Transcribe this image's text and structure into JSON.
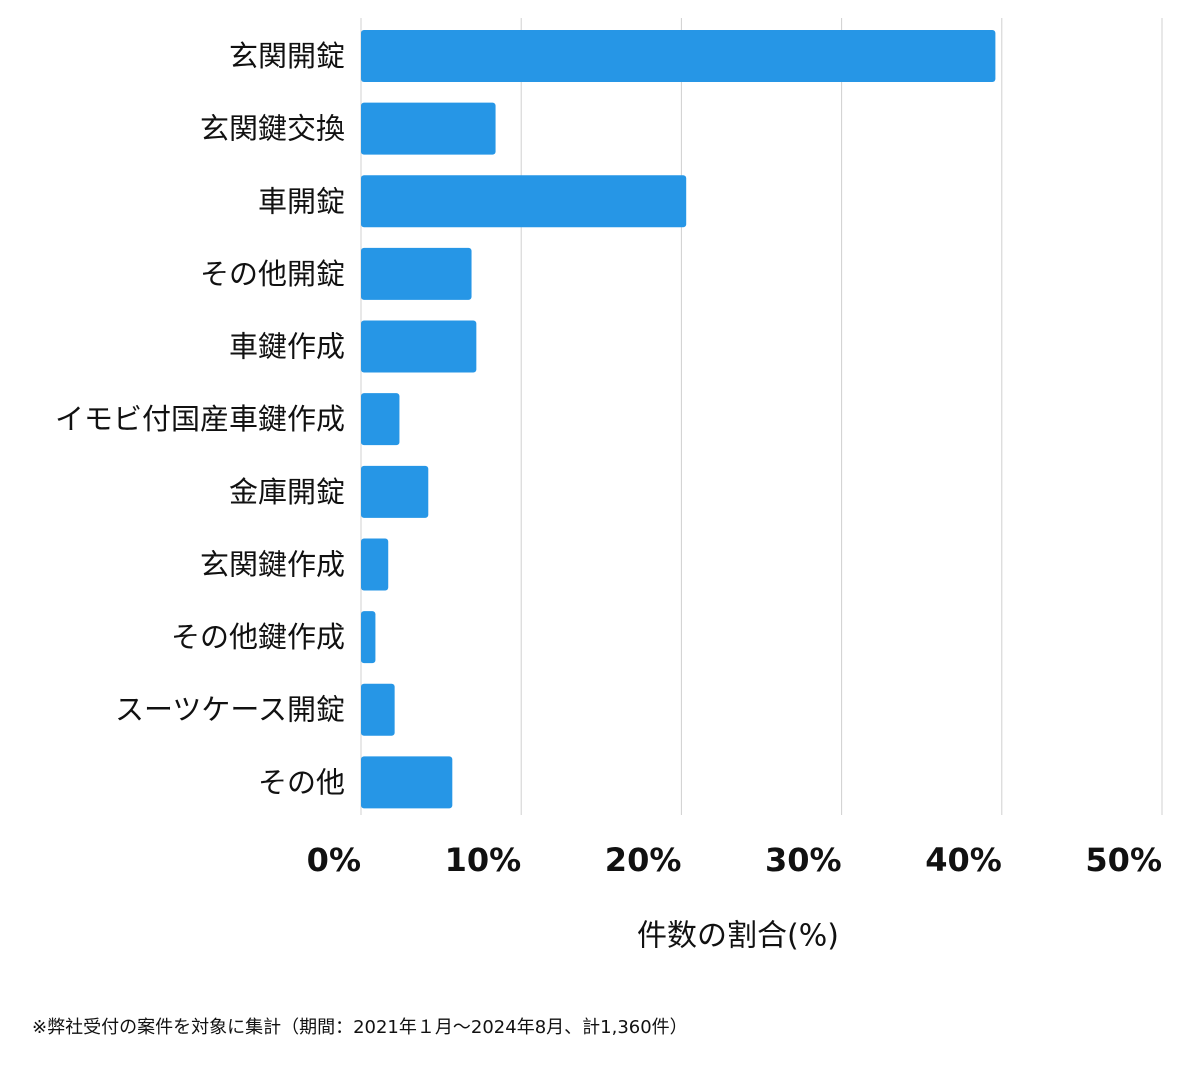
{
  "chart_data": {
    "type": "bar",
    "orientation": "horizontal",
    "categories": [
      "玄関開錠",
      "玄関鍵交換",
      "車開錠",
      "その他開錠",
      "車鍵作成",
      "イモビ付国産車鍵作成",
      "金庫開錠",
      "玄関鍵作成",
      "その他鍵作成",
      "スーツケース開錠",
      "その他"
    ],
    "values": [
      39.6,
      8.4,
      20.3,
      6.9,
      7.2,
      2.4,
      4.2,
      1.7,
      0.9,
      2.1,
      5.7
    ],
    "color": "#2696e6",
    "xlim": [
      0,
      50
    ],
    "xticks": [
      {
        "value": 0,
        "label": "0%"
      },
      {
        "value": 10,
        "label": "10%"
      },
      {
        "value": 20,
        "label": "20%"
      },
      {
        "value": 30,
        "label": "30%"
      },
      {
        "value": 40,
        "label": "40%"
      },
      {
        "value": 50,
        "label": "50%"
      }
    ],
    "x_label": "件数の割合(%)",
    "grid": true,
    "footnote": "※弊社受付の案件を対象に集計（期間：2021年１月～2024年8月、計1,360件）"
  }
}
